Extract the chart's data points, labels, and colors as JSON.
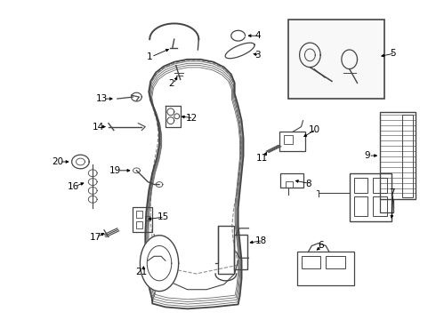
{
  "background_color": "#ffffff",
  "line_color": "#444444",
  "text_color": "#000000",
  "figsize": [
    4.9,
    3.6
  ],
  "dpi": 100
}
